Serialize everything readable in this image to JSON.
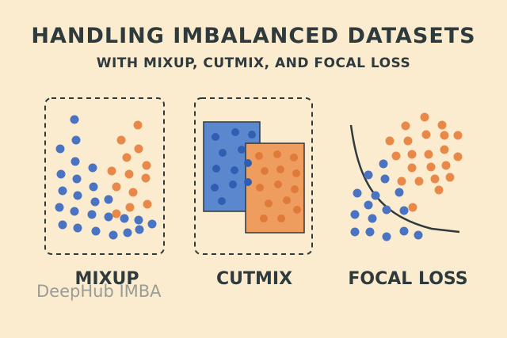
{
  "title": "HANDLING IMBALANCED DATASETS",
  "subtitle": "WITH MIXUP, CUTMIX, AND FOCAL LOSS",
  "panels": {
    "mixup": "MIXUP",
    "cutmix": "CUTMIX",
    "focal": "FOCAL LOSS"
  },
  "watermark": "DeepHub IMBA",
  "colors": {
    "background": "#fbecd0",
    "blue": "#4a73c2",
    "orange": "#e8894a",
    "blue_panel": "#5b87cf",
    "orange_panel": "#ef9c5f",
    "text": "#2f3a3d"
  }
}
